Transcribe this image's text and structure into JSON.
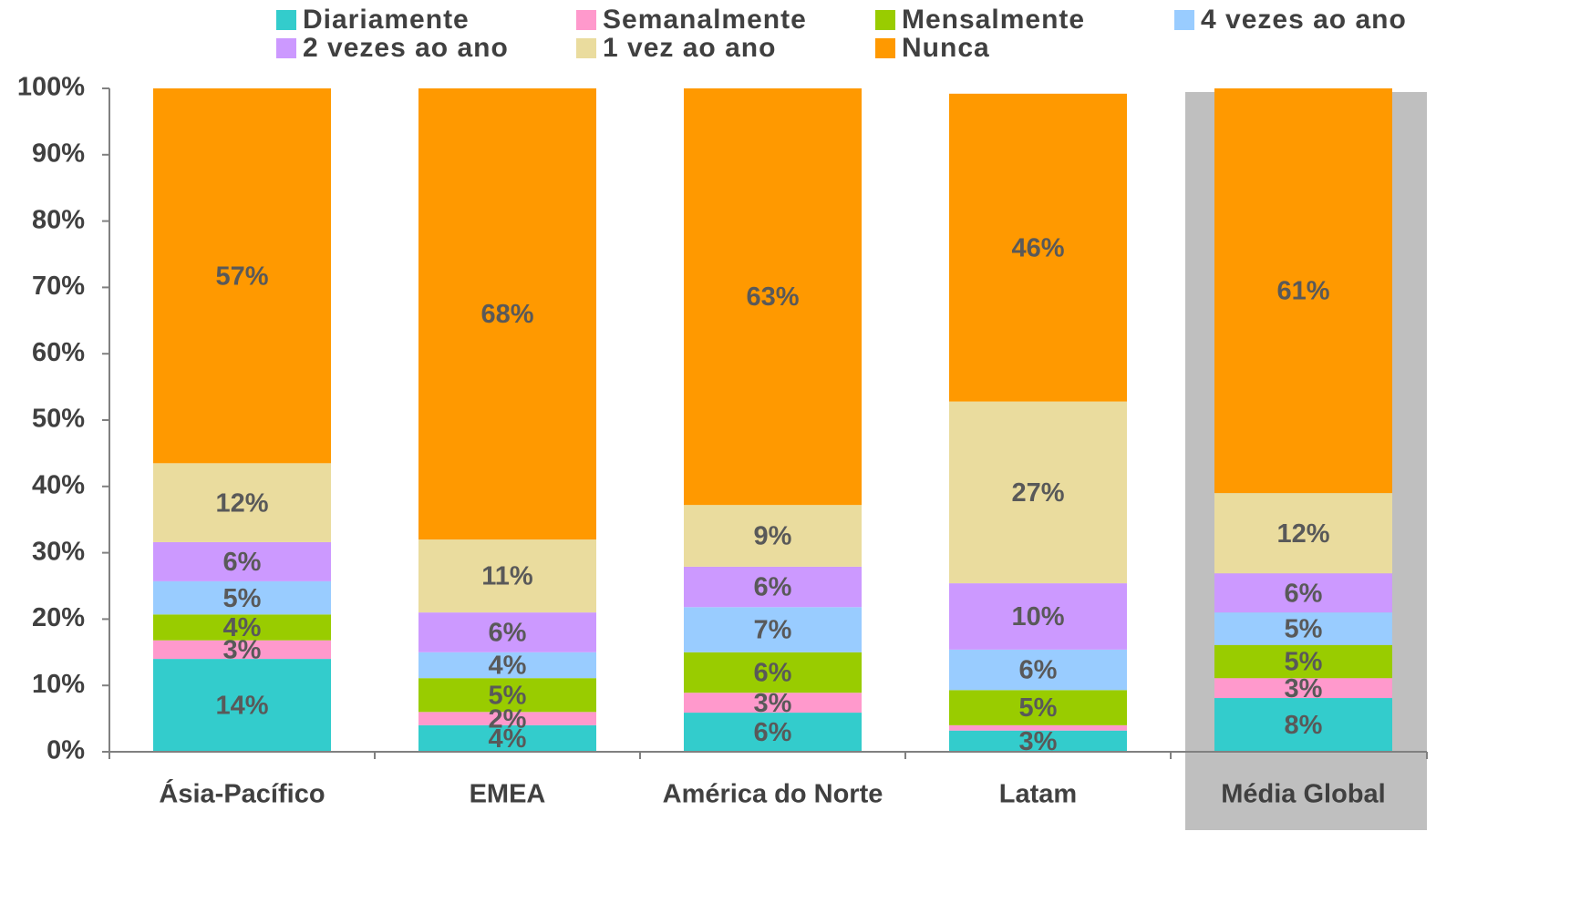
{
  "chart_data": {
    "type": "stacked_bar",
    "categories": [
      "Ásia-Pacífico",
      "EMEA",
      "América do Norte",
      "Latam",
      "Média Global"
    ],
    "ylim": [
      0,
      100
    ],
    "yticks": [
      {
        "value": 0,
        "label": "0%"
      },
      {
        "value": 10,
        "label": "10%"
      },
      {
        "value": 20,
        "label": "20%"
      },
      {
        "value": 30,
        "label": "30%"
      },
      {
        "value": 40,
        "label": "40%"
      },
      {
        "value": 50,
        "label": "50%"
      },
      {
        "value": 60,
        "label": "60%"
      },
      {
        "value": 70,
        "label": "70%"
      },
      {
        "value": 80,
        "label": "80%"
      },
      {
        "value": 90,
        "label": "90%"
      },
      {
        "value": 100,
        "label": "100%"
      }
    ],
    "series": [
      {
        "name": "Diariamente",
        "color": "#33cccc",
        "values": [
          14.0,
          4.0,
          5.9,
          3.2,
          8.1
        ],
        "value_labels": [
          "14%",
          "4%",
          "6%",
          "3%",
          "8%"
        ]
      },
      {
        "name": "Semanalmente",
        "color": "#ff99cc",
        "values": [
          2.8,
          2.0,
          3.0,
          0.8,
          3.0
        ],
        "value_labels": [
          "3%",
          "2%",
          "3%",
          null,
          "3%"
        ]
      },
      {
        "name": "Mensalmente",
        "color": "#99cc00",
        "values": [
          3.9,
          5.1,
          6.1,
          5.3,
          5.0
        ],
        "value_labels": [
          "4%",
          "5%",
          "6%",
          "5%",
          "5%"
        ]
      },
      {
        "name": "4 vezes ao ano",
        "color": "#99ccff",
        "values": [
          5.0,
          3.9,
          6.8,
          6.1,
          4.9
        ],
        "value_labels": [
          "5%",
          "4%",
          "7%",
          "6%",
          "5%"
        ]
      },
      {
        "name": "2 vezes ao ano",
        "color": "#cc99ff",
        "values": [
          5.9,
          6.0,
          6.1,
          10.0,
          5.9
        ],
        "value_labels": [
          "6%",
          "6%",
          "6%",
          "10%",
          "6%"
        ]
      },
      {
        "name": "1 vez ao ano",
        "color": "#eadc9e",
        "values": [
          11.9,
          11.0,
          9.3,
          27.4,
          12.1
        ],
        "value_labels": [
          "12%",
          "11%",
          "9%",
          "27%",
          "12%"
        ]
      },
      {
        "name": "Nunca",
        "color": "#ff9900",
        "values": [
          56.5,
          68.0,
          62.8,
          46.4,
          61.0
        ],
        "value_labels": [
          "57%",
          "68%",
          "63%",
          "46%",
          "61%"
        ]
      }
    ]
  }
}
